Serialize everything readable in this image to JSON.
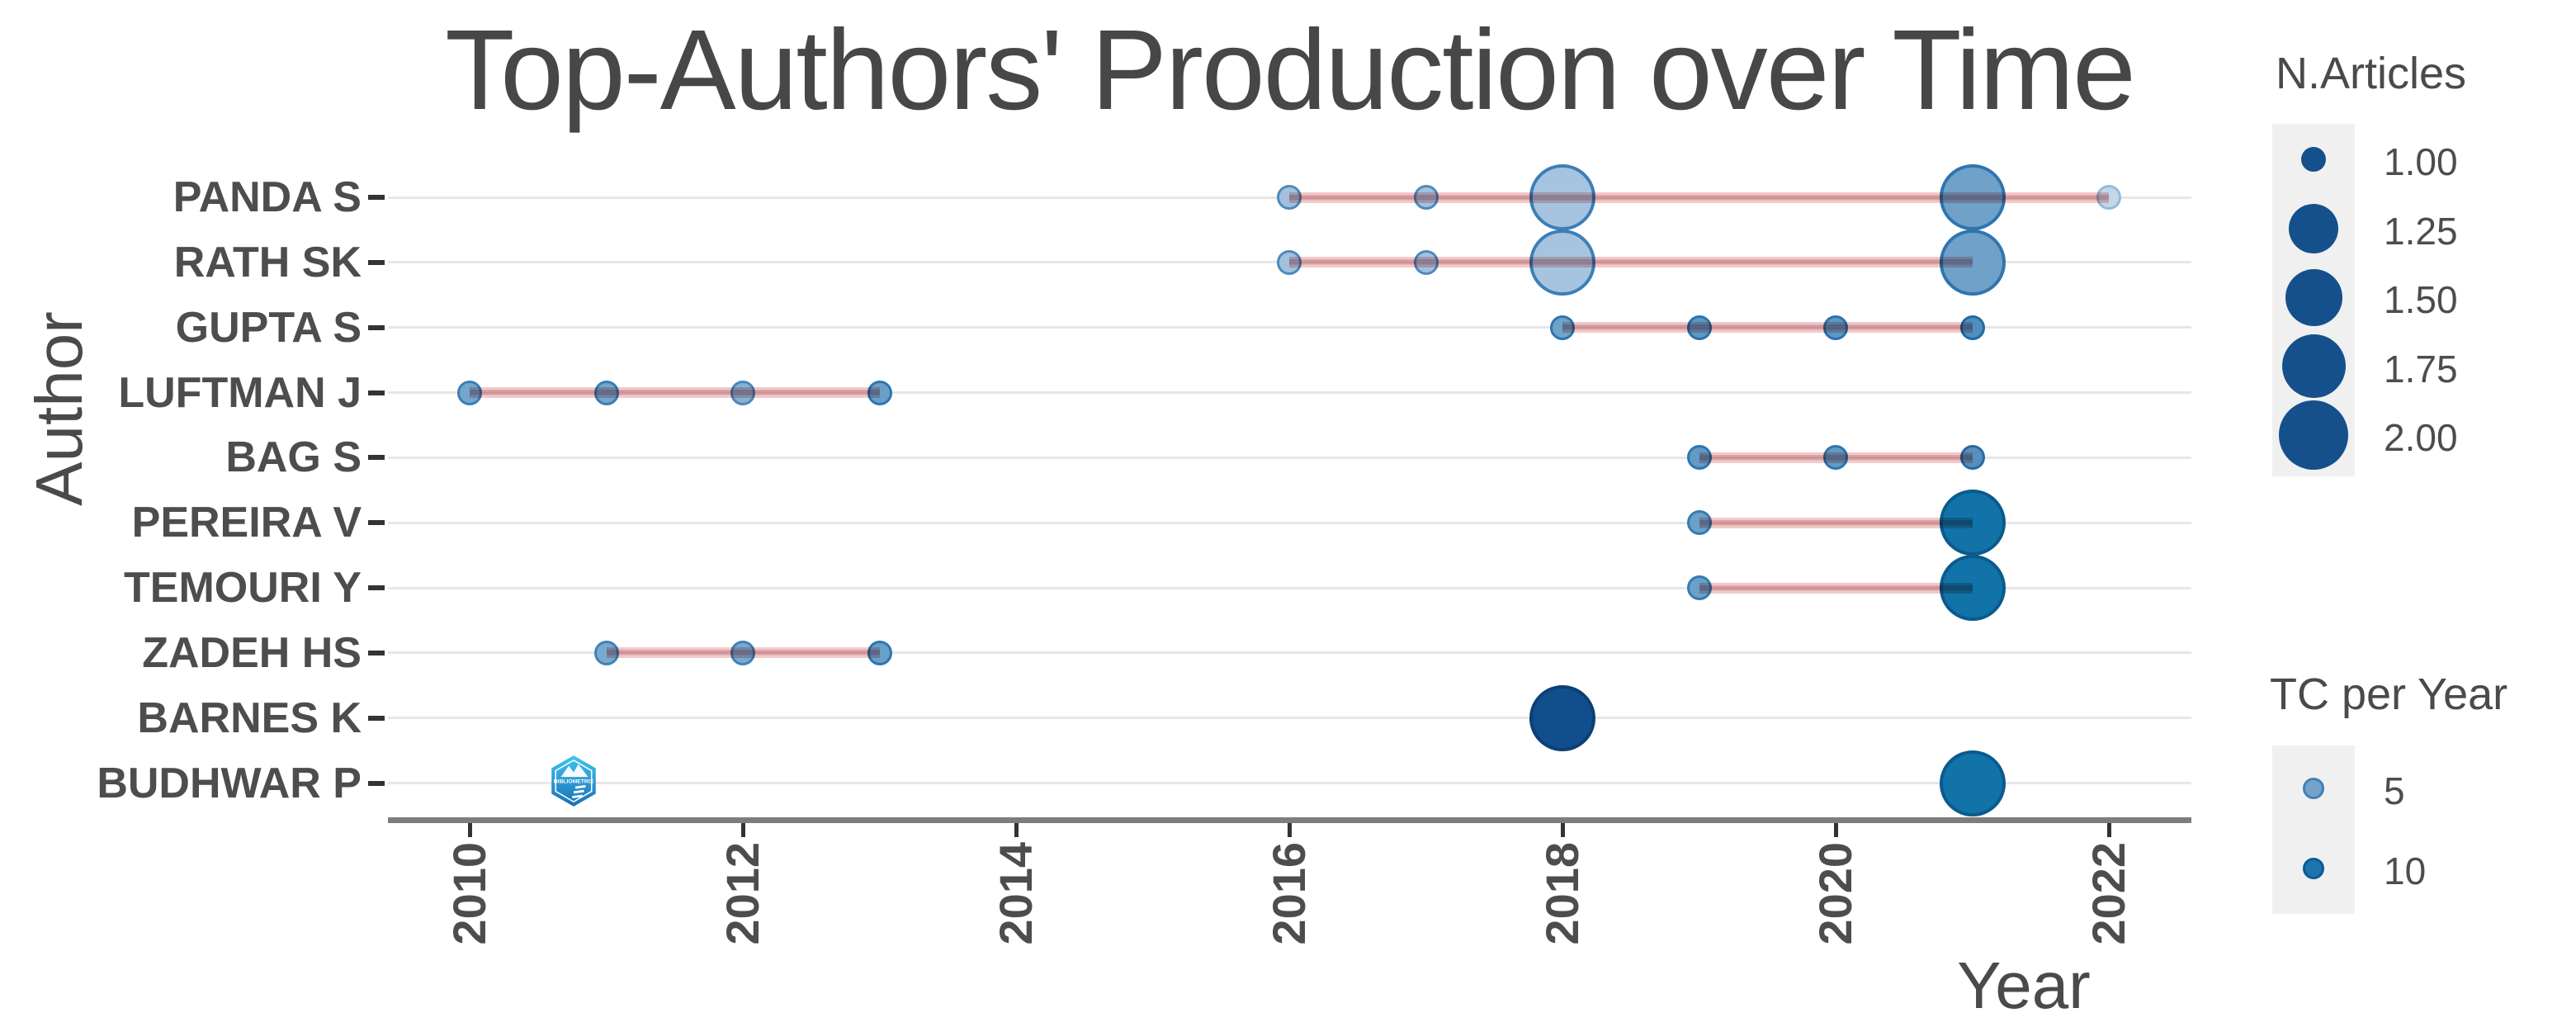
{
  "title": "Top-Authors' Production over Time",
  "x_axis": {
    "label": "Year",
    "ticks": [
      "2010",
      "2012",
      "2014",
      "2016",
      "2018",
      "2020",
      "2022"
    ]
  },
  "y_axis": {
    "label": "Author"
  },
  "legend_size": {
    "title": "N.Articles",
    "fill": "#15508c",
    "entries": [
      {
        "label": "1.00",
        "diameter": 30
      },
      {
        "label": "1.25",
        "diameter": 60
      },
      {
        "label": "1.50",
        "diameter": 69
      },
      {
        "label": "1.75",
        "diameter": 77
      },
      {
        "label": "2.00",
        "diameter": 84
      }
    ]
  },
  "legend_color": {
    "title": "TC per Year",
    "entries": [
      {
        "label": "5",
        "diameter": 26,
        "fill": "#74a3ca",
        "stroke": "#447fb3"
      },
      {
        "label": "10",
        "diameter": 26,
        "fill": "#1c73ae",
        "stroke": "#0c5a94"
      }
    ]
  },
  "watermark_text": "BIBLIOMETRIX",
  "chart_data": {
    "type": "scatter",
    "title": "Top-Authors' Production over Time",
    "xlabel": "Year",
    "ylabel": "Author",
    "x_ticks": [
      2010,
      2012,
      2014,
      2016,
      2018,
      2020,
      2022
    ],
    "x_range": [
      2009.4,
      2022.6
    ],
    "size_encoding": "N.Articles (bubble size, 1.00 - 2.00)",
    "color_encoding": "TC per Year (light blue = low, dark navy = high)",
    "grid": "horizontal only",
    "legend_position": "right",
    "series": [
      {
        "author": "PANDA S",
        "line_years": [
          2016,
          2022
        ],
        "points": [
          {
            "year": 2016,
            "articles": 1,
            "tc_per_year": 5,
            "fill": "#a3c1dd",
            "stroke": "#5089bd"
          },
          {
            "year": 2017,
            "articles": 1,
            "tc_per_year": 5,
            "fill": "#a3c1dd",
            "stroke": "#5089bd"
          },
          {
            "year": 2018,
            "articles": 2,
            "tc_per_year": 5,
            "fill": "#a6c4df",
            "stroke": "#3c7fb7"
          },
          {
            "year": 2021,
            "articles": 2,
            "tc_per_year": 7,
            "fill": "#6fa1c9",
            "stroke": "#2e75b0"
          },
          {
            "year": 2022,
            "articles": 1,
            "tc_per_year": 2,
            "fill": "#c3d7ea",
            "stroke": "#93bbdb"
          }
        ]
      },
      {
        "author": "RATH SK",
        "line_years": [
          2016,
          2021
        ],
        "points": [
          {
            "year": 2016,
            "articles": 1,
            "tc_per_year": 5,
            "fill": "#a3c1dd",
            "stroke": "#5089bd"
          },
          {
            "year": 2017,
            "articles": 1,
            "tc_per_year": 5,
            "fill": "#a3c1dd",
            "stroke": "#5089bd"
          },
          {
            "year": 2018,
            "articles": 2,
            "tc_per_year": 5,
            "fill": "#a6c4df",
            "stroke": "#3c7fb7"
          },
          {
            "year": 2021,
            "articles": 2,
            "tc_per_year": 7,
            "fill": "#6fa1c9",
            "stroke": "#2e75b0"
          }
        ]
      },
      {
        "author": "GUPTA S",
        "line_years": [
          2018,
          2021
        ],
        "points": [
          {
            "year": 2018,
            "articles": 1,
            "tc_per_year": 7,
            "fill": "#6fa3c9",
            "stroke": "#2e74ae"
          },
          {
            "year": 2019,
            "articles": 1,
            "tc_per_year": 8,
            "fill": "#5f97c3",
            "stroke": "#2b73ad"
          },
          {
            "year": 2020,
            "articles": 1,
            "tc_per_year": 8,
            "fill": "#5f97c3",
            "stroke": "#2b73ad"
          },
          {
            "year": 2021,
            "articles": 1,
            "tc_per_year": 8,
            "fill": "#4f8fc0",
            "stroke": "#22699f"
          }
        ]
      },
      {
        "author": "LUFTMAN J",
        "line_years": [
          2010,
          2013
        ],
        "points": [
          {
            "year": 2010,
            "articles": 1,
            "tc_per_year": 6,
            "fill": "#74a6cc",
            "stroke": "#3a7eb6"
          },
          {
            "year": 2011,
            "articles": 1,
            "tc_per_year": 6,
            "fill": "#74a6cc",
            "stroke": "#3a7eb6"
          },
          {
            "year": 2012,
            "articles": 1,
            "tc_per_year": 5,
            "fill": "#86b1d3",
            "stroke": "#4a88bb"
          },
          {
            "year": 2013,
            "articles": 1,
            "tc_per_year": 7,
            "fill": "#6aa0c8",
            "stroke": "#2e75b0"
          }
        ]
      },
      {
        "author": "BAG S",
        "line_years": [
          2019,
          2021
        ],
        "points": [
          {
            "year": 2019,
            "articles": 1,
            "tc_per_year": 8,
            "fill": "#629ac4",
            "stroke": "#2e76af"
          },
          {
            "year": 2020,
            "articles": 1,
            "tc_per_year": 8,
            "fill": "#629ac4",
            "stroke": "#2e76af"
          },
          {
            "year": 2021,
            "articles": 1,
            "tc_per_year": 8,
            "fill": "#578fbd",
            "stroke": "#276ba3"
          }
        ]
      },
      {
        "author": "PEREIRA V",
        "line_years": [
          2019,
          2021
        ],
        "points": [
          {
            "year": 2019,
            "articles": 1,
            "tc_per_year": 7,
            "fill": "#6ba0c8",
            "stroke": "#357bb3"
          },
          {
            "year": 2021,
            "articles": 2,
            "tc_per_year": 11,
            "fill": "#1273a8",
            "stroke": "#0a5a8e"
          }
        ]
      },
      {
        "author": "TEMOURI Y",
        "line_years": [
          2019,
          2021
        ],
        "points": [
          {
            "year": 2019,
            "articles": 1,
            "tc_per_year": 7,
            "fill": "#6ba0c8",
            "stroke": "#357bb3"
          },
          {
            "year": 2021,
            "articles": 2,
            "tc_per_year": 11,
            "fill": "#1273a8",
            "stroke": "#0a5a8e"
          }
        ]
      },
      {
        "author": "ZADEH HS",
        "line_years": [
          2011,
          2013
        ],
        "points": [
          {
            "year": 2011,
            "articles": 1,
            "tc_per_year": 6,
            "fill": "#79a9ce",
            "stroke": "#3f82b8"
          },
          {
            "year": 2012,
            "articles": 1,
            "tc_per_year": 6,
            "fill": "#79a9ce",
            "stroke": "#3f82b8"
          },
          {
            "year": 2013,
            "articles": 1,
            "tc_per_year": 7,
            "fill": "#6aa0c8",
            "stroke": "#2e75b0"
          }
        ]
      },
      {
        "author": "BARNES K",
        "line_years": null,
        "points": [
          {
            "year": 2018,
            "articles": 2,
            "tc_per_year": 15,
            "fill": "#124e8c",
            "stroke": "#0d3f77"
          }
        ]
      },
      {
        "author": "BUDHWAR P",
        "line_years": null,
        "points": [
          {
            "year": 2021,
            "articles": 2,
            "tc_per_year": 10,
            "fill": "#1273a8",
            "stroke": "#0a5a8e"
          }
        ]
      }
    ]
  }
}
